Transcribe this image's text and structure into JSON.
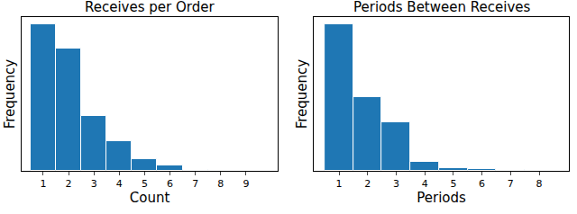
{
  "chart_data": [
    {
      "type": "histogram",
      "title": "Receives per Order",
      "x_label": "Count",
      "y_label": "Frequency",
      "bins": [
        0.5,
        1.5,
        2.5,
        3.5,
        4.5,
        5.5,
        6.5,
        7.5,
        8.5,
        9.5
      ],
      "values": [
        163,
        136,
        61,
        33,
        13,
        6,
        1,
        0.5,
        0
      ],
      "color": "#1f77b4",
      "xlim": [
        0.15,
        10.25
      ],
      "ylim": [
        0,
        171
      ],
      "xticks": [
        1,
        2,
        3,
        4,
        5,
        6,
        7,
        8,
        9
      ],
      "tick_labels": "x",
      "grid": false
    },
    {
      "type": "histogram",
      "title": "Periods Between Receives",
      "x_label": "Periods",
      "y_label": "Frequency",
      "bins": [
        0.5,
        1.5,
        2.5,
        3.5,
        4.5,
        5.5,
        6.5,
        7.5,
        8.5
      ],
      "values": [
        163,
        82,
        54,
        10,
        3,
        2,
        1,
        0.5
      ],
      "color": "#1f77b4",
      "xlim": [
        0.12,
        9.04
      ],
      "ylim": [
        0,
        171
      ],
      "xticks": [
        1,
        2,
        3,
        4,
        5,
        6,
        7,
        8
      ],
      "tick_labels": "x",
      "grid": false
    }
  ]
}
